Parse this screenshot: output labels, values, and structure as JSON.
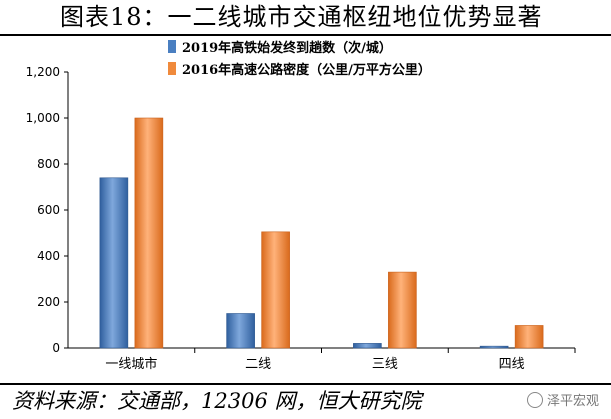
{
  "title": "图表18：一二线城市交通枢纽地位优势显著",
  "source": "资料来源：交通部，12306 网，恒大研究院",
  "watermark": "泽平宏观",
  "colors": {
    "series1": "#4a7fc1",
    "series2": "#f08a3c"
  },
  "chart_data": {
    "type": "bar",
    "categories": [
      "一线城市",
      "二线",
      "三线",
      "四线"
    ],
    "series": [
      {
        "name": "2019年高铁始发终到趟数（次/城）",
        "values": [
          740,
          150,
          20,
          8
        ]
      },
      {
        "name": "2016年高速公路密度（公里/万平方公里）",
        "values": [
          1000,
          505,
          330,
          98
        ]
      }
    ],
    "ylim": [
      0,
      1200
    ],
    "yticks": [
      "0",
      "200",
      "400",
      "600",
      "800",
      "1,000",
      "1,200"
    ],
    "ytick_values": [
      0,
      200,
      400,
      600,
      800,
      1000,
      1200
    ],
    "legend_position": "top-center",
    "grid": false
  }
}
